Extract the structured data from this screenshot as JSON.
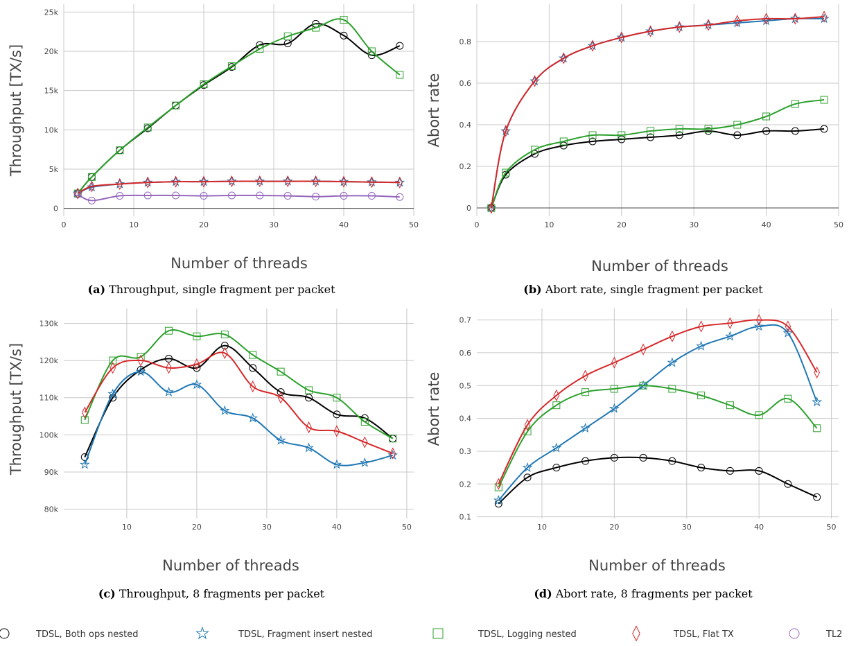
{
  "series_styles": [
    {
      "name": "TDSL, Both ops nested",
      "color": "#000000",
      "marker": "circle"
    },
    {
      "name": "TDSL, Fragment insert nested",
      "color": "#1f77b4",
      "marker": "star"
    },
    {
      "name": "TDSL, Logging nested",
      "color": "#2ca02c",
      "marker": "square"
    },
    {
      "name": "TDSL, Flat TX",
      "color": "#d62728",
      "marker": "diamond"
    },
    {
      "name": "TL2",
      "color": "#9467bd",
      "marker": "circle"
    }
  ],
  "chart_data": [
    {
      "id": "a",
      "type": "scatter",
      "caption_label": "(a)",
      "caption_text": " Throughput, single fragment per packet",
      "xlabel": "Number of threads",
      "ylabel": "Throughput [TX/s]",
      "xlim": [
        0,
        50
      ],
      "ylim": [
        -1000,
        26000
      ],
      "xticks": [
        0,
        10,
        20,
        30,
        40,
        50
      ],
      "xtick_labels": [
        "0",
        "10",
        "20",
        "30",
        "40",
        "50"
      ],
      "yticks": [
        0,
        5000,
        10000,
        15000,
        20000,
        25000
      ],
      "ytick_labels": [
        "0",
        "5k",
        "10k",
        "15k",
        "20k",
        "25k"
      ],
      "grid": true,
      "series": [
        {
          "name": "TDSL, Both ops nested",
          "x": [
            2,
            4,
            8,
            12,
            16,
            20,
            24,
            28,
            32,
            36,
            40,
            44,
            48
          ],
          "y": [
            1900,
            4000,
            7400,
            10200,
            13100,
            15700,
            18000,
            20800,
            21000,
            23500,
            22000,
            19500,
            20700
          ]
        },
        {
          "name": "TDSL, Fragment insert nested",
          "x": [
            2,
            4,
            8,
            12,
            16,
            20,
            24,
            28,
            32,
            36,
            40,
            44,
            48
          ],
          "y": [
            1900,
            2700,
            3100,
            3300,
            3400,
            3400,
            3450,
            3450,
            3450,
            3450,
            3400,
            3350,
            3300
          ]
        },
        {
          "name": "TDSL, Logging nested",
          "x": [
            2,
            4,
            8,
            12,
            16,
            20,
            24,
            28,
            32,
            36,
            40,
            44,
            48
          ],
          "y": [
            1900,
            4000,
            7400,
            10300,
            13100,
            15800,
            18100,
            20300,
            21900,
            23000,
            24000,
            20000,
            17000
          ]
        },
        {
          "name": "TDSL, Flat TX",
          "x": [
            2,
            4,
            8,
            12,
            16,
            20,
            24,
            28,
            32,
            36,
            40,
            44,
            48
          ],
          "y": [
            1900,
            2800,
            3100,
            3300,
            3400,
            3400,
            3450,
            3450,
            3450,
            3450,
            3400,
            3350,
            3300
          ]
        },
        {
          "name": "TL2",
          "x": [
            2,
            4,
            8,
            12,
            16,
            20,
            24,
            28,
            32,
            36,
            40,
            44,
            48
          ],
          "y": [
            1800,
            1000,
            1600,
            1650,
            1650,
            1600,
            1650,
            1650,
            1600,
            1500,
            1600,
            1600,
            1450
          ]
        }
      ]
    },
    {
      "id": "b",
      "type": "scatter",
      "caption_label": "(b)",
      "caption_text": " Abort rate, single fragment per packet",
      "xlabel": "Number of threads",
      "ylabel": "Abort rate",
      "xlim": [
        0,
        50
      ],
      "ylim": [
        -0.04,
        0.98
      ],
      "xticks": [
        0,
        10,
        20,
        30,
        40,
        50
      ],
      "xtick_labels": [
        "0",
        "10",
        "20",
        "30",
        "40",
        "50"
      ],
      "yticks": [
        0,
        0.2,
        0.4,
        0.6,
        0.8
      ],
      "ytick_labels": [
        "0",
        "0.2",
        "0.4",
        "0.6",
        "0.8"
      ],
      "grid": true,
      "series": [
        {
          "name": "TDSL, Both ops nested",
          "x": [
            2,
            4,
            8,
            12,
            16,
            20,
            24,
            28,
            32,
            36,
            40,
            44,
            48
          ],
          "y": [
            0,
            0.16,
            0.26,
            0.3,
            0.32,
            0.33,
            0.34,
            0.35,
            0.37,
            0.35,
            0.37,
            0.37,
            0.38
          ]
        },
        {
          "name": "TDSL, Fragment insert nested",
          "x": [
            2,
            4,
            8,
            12,
            16,
            20,
            24,
            28,
            32,
            36,
            40,
            44,
            48
          ],
          "y": [
            0,
            0.37,
            0.61,
            0.72,
            0.78,
            0.82,
            0.85,
            0.87,
            0.88,
            0.89,
            0.9,
            0.91,
            0.91
          ]
        },
        {
          "name": "TDSL, Logging nested",
          "x": [
            2,
            4,
            8,
            12,
            16,
            20,
            24,
            28,
            32,
            36,
            40,
            44,
            48
          ],
          "y": [
            0,
            0.17,
            0.28,
            0.32,
            0.35,
            0.35,
            0.37,
            0.38,
            0.38,
            0.4,
            0.44,
            0.5,
            0.52
          ]
        },
        {
          "name": "TDSL, Flat TX",
          "x": [
            2,
            4,
            8,
            12,
            16,
            20,
            24,
            28,
            32,
            36,
            40,
            44,
            48
          ],
          "y": [
            0,
            0.37,
            0.61,
            0.72,
            0.78,
            0.82,
            0.85,
            0.87,
            0.88,
            0.9,
            0.91,
            0.91,
            0.92
          ]
        }
      ]
    },
    {
      "id": "c",
      "type": "scatter",
      "caption_label": "(c)",
      "caption_text": " Throughput, 8 fragments per packet",
      "xlabel": "Number of threads",
      "ylabel": "Throughput [TX/s]",
      "xlim": [
        1,
        51
      ],
      "ylim": [
        77500,
        134000
      ],
      "xticks": [
        10,
        20,
        30,
        40,
        50
      ],
      "xtick_labels": [
        "10",
        "20",
        "30",
        "40",
        "50"
      ],
      "yticks": [
        80000,
        90000,
        100000,
        110000,
        120000,
        130000
      ],
      "ytick_labels": [
        "80k",
        "90k",
        "100k",
        "110k",
        "120k",
        "130k"
      ],
      "grid": true,
      "series": [
        {
          "name": "TDSL, Both ops nested",
          "x": [
            4,
            8,
            12,
            16,
            20,
            24,
            28,
            32,
            36,
            40,
            44,
            48
          ],
          "y": [
            94000,
            110000,
            117500,
            120500,
            118000,
            124000,
            118000,
            111500,
            110000,
            105500,
            104500,
            99000
          ]
        },
        {
          "name": "TDSL, Fragment insert nested",
          "x": [
            4,
            8,
            12,
            16,
            20,
            24,
            28,
            32,
            36,
            40,
            44,
            48
          ],
          "y": [
            92000,
            111000,
            117000,
            111500,
            113500,
            106500,
            104500,
            98500,
            96500,
            92000,
            92500,
            94500
          ]
        },
        {
          "name": "TDSL, Logging nested",
          "x": [
            4,
            8,
            12,
            16,
            20,
            24,
            28,
            32,
            36,
            40,
            44,
            48
          ],
          "y": [
            104000,
            120000,
            121000,
            128000,
            126500,
            127000,
            121500,
            117000,
            112000,
            110000,
            103500,
            99000
          ]
        },
        {
          "name": "TDSL, Flat TX",
          "x": [
            4,
            8,
            12,
            16,
            20,
            24,
            28,
            32,
            36,
            40,
            44,
            48
          ],
          "y": [
            106000,
            118000,
            120000,
            118000,
            119000,
            122000,
            113000,
            110000,
            102000,
            101000,
            98000,
            95000
          ]
        }
      ]
    },
    {
      "id": "d",
      "type": "scatter",
      "caption_label": "(d)",
      "caption_text": " Abort rate, 8 fragments per packet",
      "xlabel": "Number of threads",
      "ylabel": "Abort rate",
      "xlim": [
        1,
        51
      ],
      "ylim": [
        0.095,
        0.735
      ],
      "xticks": [
        10,
        20,
        30,
        40,
        50
      ],
      "xtick_labels": [
        "10",
        "20",
        "30",
        "40",
        "50"
      ],
      "yticks": [
        0.1,
        0.2,
        0.3,
        0.4,
        0.5,
        0.6,
        0.7
      ],
      "ytick_labels": [
        "0.1",
        "0.2",
        "0.3",
        "0.4",
        "0.5",
        "0.6",
        "0.7"
      ],
      "grid": true,
      "series": [
        {
          "name": "TDSL, Both ops nested",
          "x": [
            4,
            8,
            12,
            16,
            20,
            24,
            28,
            32,
            36,
            40,
            44,
            48
          ],
          "y": [
            0.14,
            0.22,
            0.25,
            0.27,
            0.28,
            0.28,
            0.27,
            0.25,
            0.24,
            0.24,
            0.2,
            0.16
          ]
        },
        {
          "name": "TDSL, Fragment insert nested",
          "x": [
            4,
            8,
            12,
            16,
            20,
            24,
            28,
            32,
            36,
            40,
            44,
            48
          ],
          "y": [
            0.15,
            0.25,
            0.31,
            0.37,
            0.43,
            0.5,
            0.57,
            0.62,
            0.65,
            0.68,
            0.66,
            0.45
          ]
        },
        {
          "name": "TDSL, Logging nested",
          "x": [
            4,
            8,
            12,
            16,
            20,
            24,
            28,
            32,
            36,
            40,
            44,
            48
          ],
          "y": [
            0.19,
            0.36,
            0.44,
            0.48,
            0.49,
            0.5,
            0.49,
            0.47,
            0.44,
            0.41,
            0.46,
            0.37
          ]
        },
        {
          "name": "TDSL, Flat TX",
          "x": [
            4,
            8,
            12,
            16,
            20,
            24,
            28,
            32,
            36,
            40,
            44,
            48
          ],
          "y": [
            0.2,
            0.38,
            0.47,
            0.53,
            0.57,
            0.61,
            0.65,
            0.68,
            0.69,
            0.7,
            0.68,
            0.54
          ]
        }
      ]
    }
  ]
}
